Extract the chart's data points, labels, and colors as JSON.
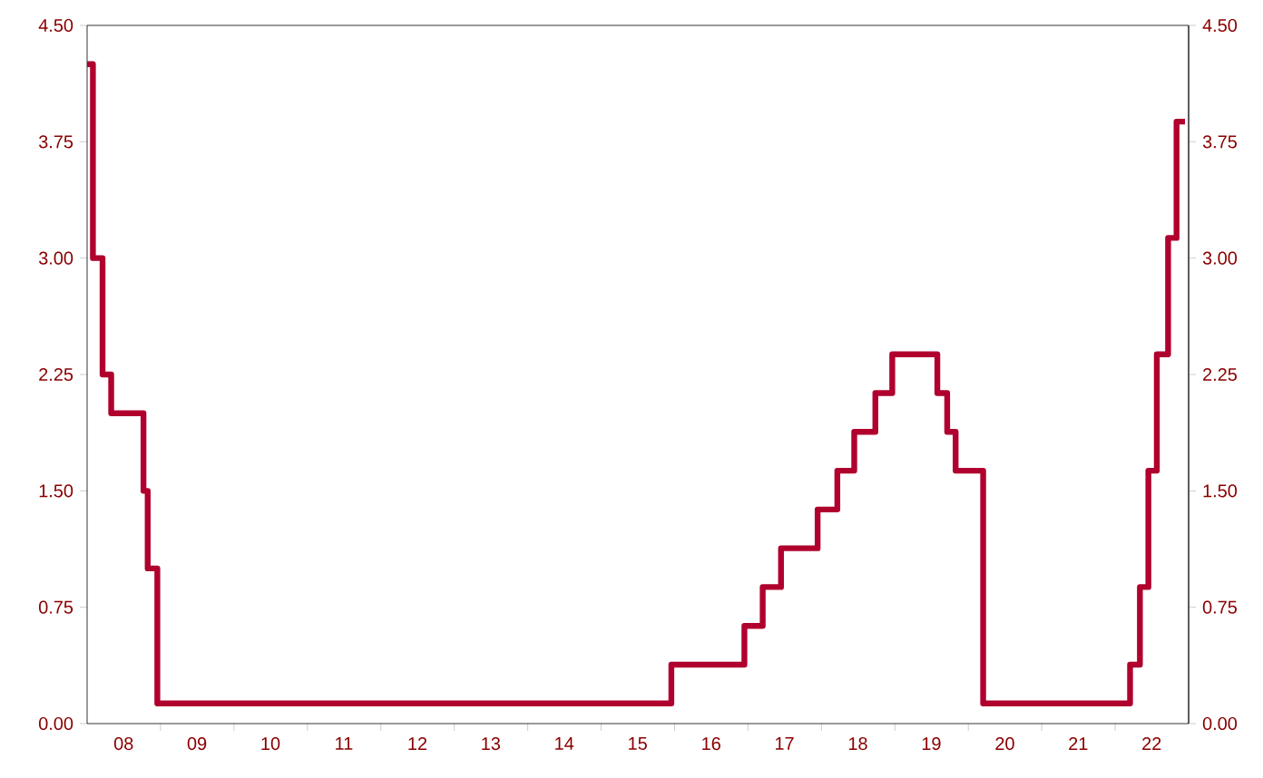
{
  "chart_data": {
    "type": "step",
    "x": [
      "2008-01-01",
      "2008-01-30",
      "2008-03-18",
      "2008-04-30",
      "2008-10-08",
      "2008-10-29",
      "2008-12-16",
      "2015-12-16",
      "2016-12-14",
      "2017-03-15",
      "2017-06-14",
      "2017-12-13",
      "2018-03-21",
      "2018-06-13",
      "2018-09-26",
      "2018-12-19",
      "2019-07-31",
      "2019-09-18",
      "2019-10-30",
      "2020-03-15",
      "2022-03-16",
      "2022-05-04",
      "2022-06-15",
      "2022-07-27",
      "2022-09-21",
      "2022-11-02",
      "2022-12-14"
    ],
    "values": [
      4.25,
      3.0,
      2.25,
      2.0,
      1.5,
      1.0,
      0.13,
      0.38,
      0.63,
      0.88,
      1.13,
      1.38,
      1.63,
      1.88,
      2.13,
      2.38,
      2.13,
      1.88,
      1.63,
      0.13,
      0.38,
      0.88,
      1.63,
      2.38,
      3.13,
      3.88,
      3.88
    ],
    "color": "#b0002e",
    "xlim": [
      "2008-01-01",
      "2023-01-01"
    ],
    "xticks": [
      {
        "value": "2008-07-01",
        "label": "08"
      },
      {
        "value": "2009-07-01",
        "label": "09"
      },
      {
        "value": "2010-07-01",
        "label": "10"
      },
      {
        "value": "2011-07-01",
        "label": "11"
      },
      {
        "value": "2012-07-01",
        "label": "12"
      },
      {
        "value": "2013-07-01",
        "label": "13"
      },
      {
        "value": "2014-07-01",
        "label": "14"
      },
      {
        "value": "2015-07-01",
        "label": "15"
      },
      {
        "value": "2016-07-01",
        "label": "16"
      },
      {
        "value": "2017-07-01",
        "label": "17"
      },
      {
        "value": "2018-07-01",
        "label": "18"
      },
      {
        "value": "2019-07-01",
        "label": "19"
      },
      {
        "value": "2020-07-01",
        "label": "20"
      },
      {
        "value": "2021-07-01",
        "label": "21"
      },
      {
        "value": "2022-07-01",
        "label": "22"
      },
      {
        "value": "2009-01-01",
        "label": null
      },
      {
        "value": "2010-01-01",
        "label": null
      },
      {
        "value": "2011-01-01",
        "label": null
      },
      {
        "value": "2012-01-01",
        "label": null
      },
      {
        "value": "2013-01-01",
        "label": null
      },
      {
        "value": "2014-01-01",
        "label": null
      },
      {
        "value": "2015-01-01",
        "label": null
      },
      {
        "value": "2016-01-01",
        "label": null
      },
      {
        "value": "2017-01-01",
        "label": null
      },
      {
        "value": "2018-01-01",
        "label": null
      },
      {
        "value": "2019-01-01",
        "label": null
      },
      {
        "value": "2020-01-01",
        "label": null
      },
      {
        "value": "2021-01-01",
        "label": null
      },
      {
        "value": "2022-01-01",
        "label": null
      }
    ],
    "ylim": [
      0,
      4.5
    ],
    "yticks": [
      {
        "value": 0,
        "label": "0.00"
      },
      {
        "value": 0.75,
        "label": "0.75"
      },
      {
        "value": 1.5,
        "label": "1.50"
      },
      {
        "value": 2.25,
        "label": "2.25"
      },
      {
        "value": 3.0,
        "label": "3.00"
      },
      {
        "value": 3.75,
        "label": "3.75"
      },
      {
        "value": 4.5,
        "label": "4.50"
      }
    ],
    "y2lim": [
      0,
      4.5
    ],
    "y2ticks": [
      {
        "value": 0,
        "label": "0.00"
      },
      {
        "value": 0.75,
        "label": "0.75"
      },
      {
        "value": 1.5,
        "label": "1.50"
      },
      {
        "value": 2.25,
        "label": "2.25"
      },
      {
        "value": 3.0,
        "label": "3.00"
      },
      {
        "value": 3.75,
        "label": "3.75"
      },
      {
        "value": 4.5,
        "label": "4.50"
      }
    ],
    "grid": false
  }
}
